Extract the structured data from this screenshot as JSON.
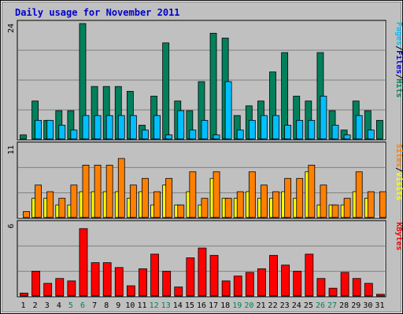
{
  "chart_data": {
    "type": "bar",
    "title": "Daily usage for November 2011",
    "x": [
      "1",
      "2",
      "3",
      "4",
      "5",
      "6",
      "7",
      "8",
      "9",
      "10",
      "11",
      "12",
      "13",
      "14",
      "15",
      "16",
      "17",
      "18",
      "19",
      "20",
      "21",
      "22",
      "23",
      "24",
      "25",
      "26",
      "27",
      "28",
      "29",
      "30",
      "31"
    ],
    "weekend_days": [
      "5",
      "6",
      "12",
      "13",
      "19",
      "20",
      "26",
      "27"
    ],
    "panels": [
      {
        "name": "hits-files-pages",
        "ymax": 24,
        "ymax_label": "24",
        "side_label": [
          "Pages",
          "/",
          "Files",
          "/",
          "Hits"
        ],
        "series": [
          {
            "name": "Hits",
            "color": "#00805c",
            "values": [
              1,
              8,
              4,
              6,
              6,
              24,
              11,
              11,
              11,
              10,
              3,
              9,
              20,
              8,
              6,
              12,
              22,
              21,
              5,
              7,
              8,
              14,
              18,
              9,
              8,
              18,
              6,
              2,
              8,
              6,
              4
            ]
          },
          {
            "name": "Files",
            "color": "#00bfff",
            "values": [
              0,
              4,
              4,
              3,
              2,
              5,
              5,
              5,
              5,
              5,
              2,
              5,
              1,
              6,
              2,
              4,
              1,
              12,
              2,
              4,
              5,
              5,
              3,
              4,
              4,
              9,
              3,
              1,
              5,
              2,
              0
            ]
          },
          {
            "name": "Pages",
            "color": "#00bfff",
            "values": [
              0,
              0,
              0,
              0,
              0,
              0,
              0,
              0,
              0,
              0,
              0,
              0,
              0,
              0,
              0,
              0,
              0,
              0,
              0,
              0,
              0,
              0,
              0,
              0,
              0,
              0,
              0,
              0,
              0,
              0,
              0
            ]
          }
        ]
      },
      {
        "name": "visits-sites",
        "ymax": 11,
        "ymax_label": "11",
        "side_label": [
          "Sites",
          "/",
          "Visits"
        ],
        "series": [
          {
            "name": "Visits",
            "color": "#ff8000",
            "values": [
              1,
              5,
              4,
              3,
              5,
              8,
              8,
              8,
              9,
              5,
              6,
              4,
              6,
              2,
              7,
              3,
              7,
              3,
              4,
              7,
              5,
              4,
              6,
              6,
              8,
              5,
              2,
              3,
              7,
              4,
              4
            ]
          },
          {
            "name": "Sites",
            "color": "#ffff00",
            "values": [
              0,
              3,
              3,
              2,
              2,
              4,
              4,
              4,
              4,
              3,
              4,
              2,
              5,
              2,
              4,
              2,
              6,
              3,
              3,
              4,
              3,
              3,
              4,
              3,
              7,
              2,
              2,
              2,
              4,
              3,
              0
            ]
          }
        ]
      },
      {
        "name": "kbytes",
        "ymax": 6,
        "ymax_label": "6",
        "side_label": [
          "KBytes"
        ],
        "series": [
          {
            "name": "KBytes",
            "color": "#ff0000",
            "values": [
              0.3,
              2.1,
              1.1,
              1.5,
              1.3,
              5.6,
              2.8,
              2.8,
              2.4,
              0.9,
              2.3,
              3.5,
              2.1,
              0.8,
              3.2,
              4.0,
              3.4,
              1.3,
              1.7,
              2.0,
              2.3,
              3.4,
              2.6,
              2.1,
              3.5,
              1.5,
              0.7,
              2.0,
              1.5,
              1.1,
              0.2
            ]
          }
        ]
      }
    ]
  }
}
